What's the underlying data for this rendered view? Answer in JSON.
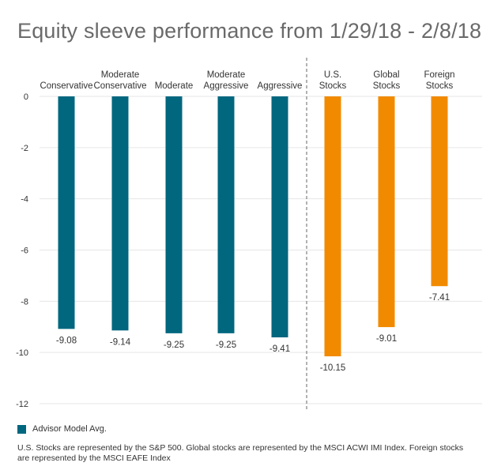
{
  "chart_data": {
    "type": "bar",
    "title": "Equity sleeve performance from 1/29/18 - 2/8/18",
    "xlabel": "",
    "ylabel": "",
    "ylim": [
      -12,
      0
    ],
    "yticks": [
      0,
      -2,
      -4,
      -6,
      -8,
      -10,
      -12
    ],
    "categories": [
      [
        "Conservative"
      ],
      [
        "Moderate",
        "Conservative"
      ],
      [
        "Moderate"
      ],
      [
        "Moderate",
        "Aggressive"
      ],
      [
        "Aggressive"
      ],
      [
        "U.S.",
        "Stocks"
      ],
      [
        "Global",
        "Stocks"
      ],
      [
        "Foreign",
        "Stocks"
      ]
    ],
    "values": [
      -9.08,
      -9.14,
      -9.25,
      -9.25,
      -9.41,
      -10.15,
      -9.01,
      -7.41
    ],
    "value_labels": [
      "-9.08",
      "-9.14",
      "-9.25",
      "-9.25",
      "-9.41",
      "-10.15",
      "-9.01",
      "-7.41"
    ],
    "groups": [
      "model",
      "model",
      "model",
      "model",
      "model",
      "index",
      "index",
      "index"
    ],
    "colors": {
      "model": "#00677f",
      "index": "#f28a00"
    },
    "divider_after_index": 4,
    "legend": [
      {
        "label": "Advisor Model Avg.",
        "color": "#00677f"
      }
    ]
  },
  "footnote": "U.S. Stocks are represented by the S&P 500. Global stocks are represented by the MSCI ACWI IMI Index. Foreign stocks are represented by the MSCI EAFE Index"
}
